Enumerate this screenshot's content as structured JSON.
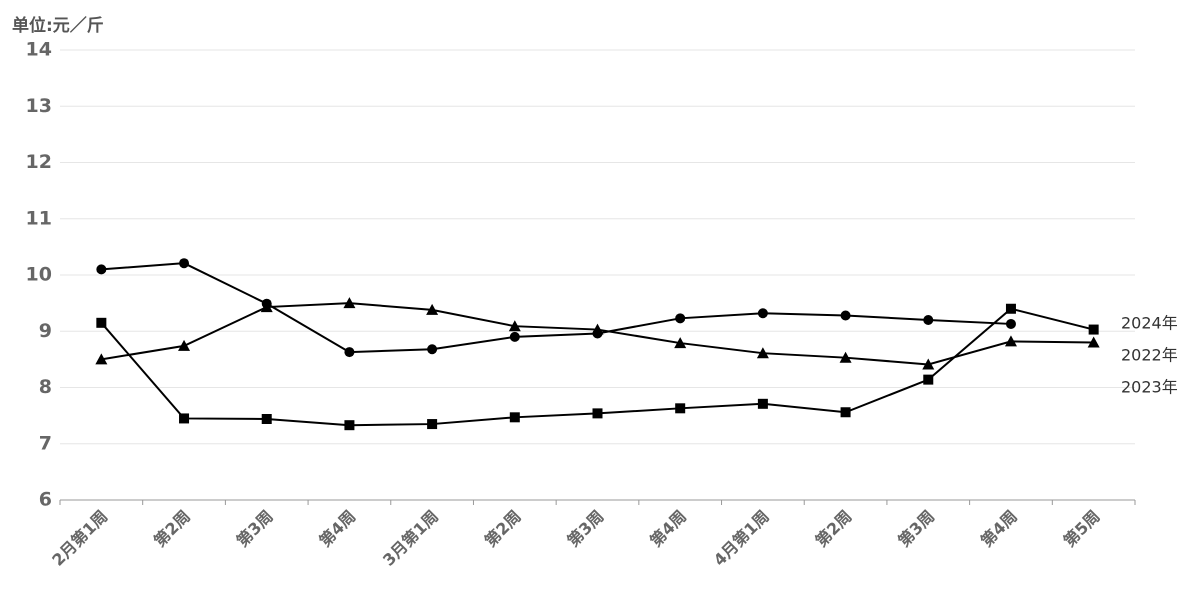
{
  "chart_data": {
    "type": "line",
    "unit_label": "单位:元／斤",
    "categories": [
      "2月第1周",
      "第2周",
      "第3周",
      "第4周",
      "3月第1周",
      "第2周",
      "第3周",
      "第4周",
      "4月第1周",
      "第2周",
      "第3周",
      "第4周",
      "第5周"
    ],
    "series": [
      {
        "name": "2024年",
        "color": "#000000",
        "marker": "circle",
        "values": [
          10.1,
          10.21,
          9.49,
          8.63,
          8.68,
          8.9,
          8.96,
          9.23,
          9.32,
          9.28,
          9.2,
          9.13,
          null
        ]
      },
      {
        "name": "2022年",
        "color": "#000000",
        "marker": "triangle",
        "values": [
          8.5,
          8.74,
          9.43,
          9.5,
          9.38,
          9.09,
          9.03,
          8.79,
          8.61,
          8.53,
          8.41,
          8.82,
          8.8
        ]
      },
      {
        "name": "2023年",
        "color": "#000000",
        "marker": "square",
        "values": [
          9.15,
          7.45,
          7.44,
          7.33,
          7.35,
          7.47,
          7.54,
          7.63,
          7.71,
          7.56,
          8.14,
          9.4,
          9.03
        ]
      }
    ],
    "ylim": [
      6,
      14
    ],
    "yticks": [
      6,
      7,
      8,
      9,
      10,
      11,
      12,
      13,
      14
    ],
    "grid": true,
    "legend": "right"
  }
}
